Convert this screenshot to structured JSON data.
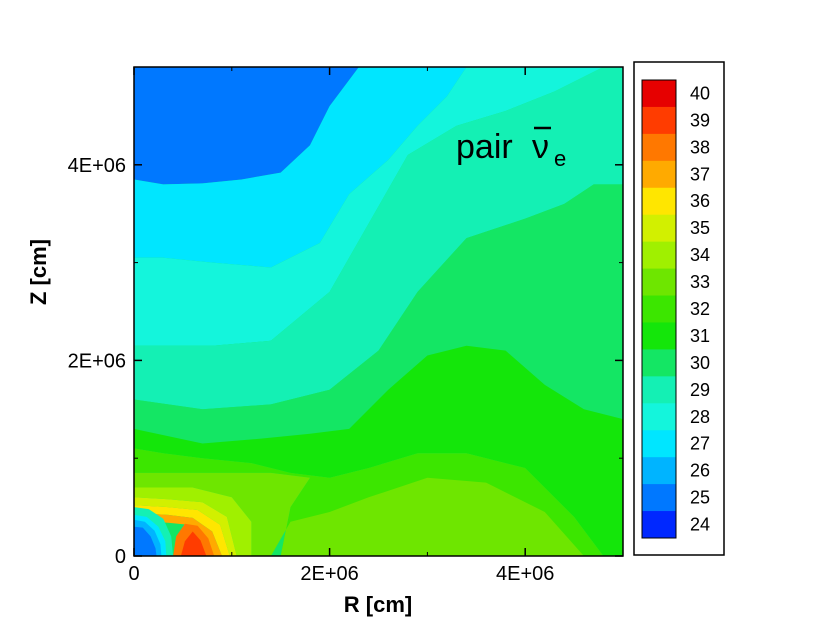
{
  "chart_data": {
    "type": "heatmap",
    "title": "",
    "annotation": {
      "text": "pair",
      "symbol": "ν",
      "subscript": "e"
    },
    "xlabel": "R [cm]",
    "ylabel": "Z [cm]",
    "xlim": [
      0,
      5000000
    ],
    "ylim": [
      0,
      5000000
    ],
    "x_ticks": [
      0,
      2000000,
      4000000
    ],
    "x_tick_labels": [
      "0",
      "2E+06",
      "4E+06"
    ],
    "y_ticks": [
      0,
      2000000,
      4000000
    ],
    "y_tick_labels": [
      "0",
      "2E+06",
      "4E+06"
    ],
    "colorbar": {
      "levels": [
        40,
        39,
        38,
        37,
        36,
        35,
        34,
        33,
        32,
        31,
        30,
        29,
        28,
        27,
        26,
        25,
        24
      ],
      "level_labels": [
        "40",
        "39",
        "38",
        "37",
        "36",
        "35",
        "34",
        "33",
        "32",
        "31",
        "30",
        "29",
        "28",
        "27",
        "26",
        "25",
        "24"
      ],
      "colors": [
        "#e60000",
        "#ff3c00",
        "#ff7800",
        "#ffaa00",
        "#ffe600",
        "#d2f000",
        "#a0f000",
        "#6ee600",
        "#3ce600",
        "#14e60a",
        "#14e664",
        "#14f0b4",
        "#14f5dc",
        "#00e6ff",
        "#00b4ff",
        "#0078ff",
        "#0028ff"
      ]
    },
    "regions": [
      {
        "level": 24.5,
        "points": [
          [
            0,
            3850000
          ],
          [
            300000,
            3800000
          ],
          [
            700000,
            3810000
          ],
          [
            1100000,
            3850000
          ],
          [
            1500000,
            3920000
          ],
          [
            1800000,
            4200000
          ],
          [
            2000000,
            4600000
          ],
          [
            2300000,
            5000000
          ],
          [
            0,
            5000000
          ]
        ]
      },
      {
        "level": 26.5,
        "points": [
          [
            0,
            3850000
          ],
          [
            300000,
            3800000
          ],
          [
            700000,
            3810000
          ],
          [
            1100000,
            3850000
          ],
          [
            1500000,
            3920000
          ],
          [
            1800000,
            4200000
          ],
          [
            2000000,
            4600000
          ],
          [
            2300000,
            5000000
          ],
          [
            3400000,
            5000000
          ],
          [
            3200000,
            4700000
          ],
          [
            2900000,
            4400000
          ],
          [
            2600000,
            4050000
          ],
          [
            2200000,
            3700000
          ],
          [
            1900000,
            3200000
          ],
          [
            1400000,
            2950000
          ],
          [
            800000,
            3000000
          ],
          [
            300000,
            3050000
          ],
          [
            0,
            3050000
          ]
        ]
      },
      {
        "level": 27.5,
        "points": [
          [
            0,
            3050000
          ],
          [
            300000,
            3050000
          ],
          [
            800000,
            3000000
          ],
          [
            1400000,
            2950000
          ],
          [
            1900000,
            3200000
          ],
          [
            2200000,
            3700000
          ],
          [
            2600000,
            4050000
          ],
          [
            2900000,
            4400000
          ],
          [
            3200000,
            4700000
          ],
          [
            3400000,
            5000000
          ],
          [
            4800000,
            5000000
          ],
          [
            4300000,
            4750000
          ],
          [
            3800000,
            4550000
          ],
          [
            3300000,
            4400000
          ],
          [
            2800000,
            4100000
          ],
          [
            2400000,
            3400000
          ],
          [
            2000000,
            2700000
          ],
          [
            1400000,
            2200000
          ],
          [
            800000,
            2150000
          ],
          [
            0,
            2150000
          ]
        ]
      },
      {
        "level": 28.5,
        "points": [
          [
            0,
            2150000
          ],
          [
            800000,
            2150000
          ],
          [
            1400000,
            2200000
          ],
          [
            2000000,
            2700000
          ],
          [
            2400000,
            3400000
          ],
          [
            2800000,
            4100000
          ],
          [
            3300000,
            4400000
          ],
          [
            3800000,
            4550000
          ],
          [
            4300000,
            4750000
          ],
          [
            4800000,
            5000000
          ],
          [
            5000000,
            5000000
          ],
          [
            5000000,
            3800000
          ],
          [
            4700000,
            3800000
          ],
          [
            4400000,
            3600000
          ],
          [
            4000000,
            3450000
          ],
          [
            3400000,
            3250000
          ],
          [
            2900000,
            2700000
          ],
          [
            2500000,
            2100000
          ],
          [
            2000000,
            1700000
          ],
          [
            1400000,
            1550000
          ],
          [
            700000,
            1500000
          ],
          [
            0,
            1600000
          ]
        ]
      },
      {
        "level": 29.5,
        "points": [
          [
            0,
            1600000
          ],
          [
            700000,
            1500000
          ],
          [
            1400000,
            1550000
          ],
          [
            2000000,
            1700000
          ],
          [
            2500000,
            2100000
          ],
          [
            2900000,
            2700000
          ],
          [
            3400000,
            3250000
          ],
          [
            4000000,
            3450000
          ],
          [
            4400000,
            3600000
          ],
          [
            4700000,
            3800000
          ],
          [
            5000000,
            3800000
          ],
          [
            5000000,
            1400000
          ],
          [
            4600000,
            1500000
          ],
          [
            4200000,
            1750000
          ],
          [
            3800000,
            2100000
          ],
          [
            3400000,
            2150000
          ],
          [
            3000000,
            2050000
          ],
          [
            2600000,
            1700000
          ],
          [
            2200000,
            1300000
          ],
          [
            1800000,
            1250000
          ],
          [
            1300000,
            1200000
          ],
          [
            700000,
            1150000
          ],
          [
            0,
            1300000
          ]
        ]
      },
      {
        "level": 30.5,
        "points": [
          [
            0,
            1300000
          ],
          [
            700000,
            1150000
          ],
          [
            1300000,
            1200000
          ],
          [
            1800000,
            1250000
          ],
          [
            2200000,
            1300000
          ],
          [
            2600000,
            1700000
          ],
          [
            3000000,
            2050000
          ],
          [
            3400000,
            2150000
          ],
          [
            3800000,
            2100000
          ],
          [
            4200000,
            1750000
          ],
          [
            4600000,
            1500000
          ],
          [
            5000000,
            1400000
          ],
          [
            5000000,
            0
          ],
          [
            4800000,
            0
          ],
          [
            4500000,
            400000
          ],
          [
            4000000,
            900000
          ],
          [
            3400000,
            1050000
          ],
          [
            2900000,
            1050000
          ],
          [
            2400000,
            900000
          ],
          [
            2000000,
            800000
          ],
          [
            1600000,
            850000
          ],
          [
            1200000,
            950000
          ],
          [
            700000,
            1000000
          ],
          [
            300000,
            1050000
          ],
          [
            0,
            1100000
          ]
        ]
      },
      {
        "level": 31.5,
        "points": [
          [
            0,
            1100000
          ],
          [
            300000,
            1050000
          ],
          [
            700000,
            1000000
          ],
          [
            1200000,
            950000
          ],
          [
            1600000,
            850000
          ],
          [
            2000000,
            800000
          ],
          [
            2400000,
            900000
          ],
          [
            2900000,
            1050000
          ],
          [
            3400000,
            1050000
          ],
          [
            4000000,
            900000
          ],
          [
            4500000,
            400000
          ],
          [
            4800000,
            0
          ],
          [
            1500000,
            0
          ],
          [
            1600000,
            500000
          ],
          [
            1800000,
            800000
          ],
          [
            1400000,
            850000
          ],
          [
            1000000,
            850000
          ],
          [
            600000,
            850000
          ],
          [
            200000,
            850000
          ],
          [
            0,
            850000
          ]
        ]
      },
      {
        "level": 32.5,
        "points": [
          [
            0,
            850000
          ],
          [
            200000,
            850000
          ],
          [
            600000,
            850000
          ],
          [
            1000000,
            850000
          ],
          [
            1400000,
            850000
          ],
          [
            1800000,
            800000
          ],
          [
            1600000,
            500000
          ],
          [
            1500000,
            0
          ],
          [
            4600000,
            0
          ],
          [
            4200000,
            450000
          ],
          [
            3600000,
            750000
          ],
          [
            3000000,
            800000
          ],
          [
            2400000,
            600000
          ],
          [
            2000000,
            450000
          ],
          [
            1600000,
            350000
          ],
          [
            1400000,
            0
          ],
          [
            1200000,
            0
          ],
          [
            1200000,
            350000
          ],
          [
            1000000,
            600000
          ],
          [
            600000,
            700000
          ],
          [
            200000,
            700000
          ],
          [
            0,
            700000
          ]
        ]
      },
      {
        "level": 33.5,
        "points": [
          [
            0,
            700000
          ],
          [
            200000,
            700000
          ],
          [
            600000,
            700000
          ],
          [
            1000000,
            600000
          ],
          [
            1200000,
            350000
          ],
          [
            1200000,
            0
          ],
          [
            1050000,
            0
          ],
          [
            950000,
            400000
          ],
          [
            700000,
            550000
          ],
          [
            350000,
            580000
          ],
          [
            0,
            600000
          ]
        ]
      },
      {
        "level": 34.5,
        "points": [
          [
            0,
            600000
          ],
          [
            350000,
            580000
          ],
          [
            700000,
            550000
          ],
          [
            950000,
            400000
          ],
          [
            1050000,
            0
          ],
          [
            980000,
            0
          ],
          [
            880000,
            320000
          ],
          [
            650000,
            470000
          ],
          [
            350000,
            500000
          ],
          [
            0,
            520000
          ]
        ]
      },
      {
        "level": 35.5,
        "points": [
          [
            0,
            520000
          ],
          [
            350000,
            500000
          ],
          [
            650000,
            470000
          ],
          [
            880000,
            320000
          ],
          [
            980000,
            0
          ],
          [
            900000,
            0
          ],
          [
            800000,
            250000
          ],
          [
            600000,
            390000
          ],
          [
            350000,
            420000
          ],
          [
            0,
            440000
          ]
        ]
      },
      {
        "level": 36.5,
        "points": [
          [
            0,
            440000
          ],
          [
            350000,
            420000
          ],
          [
            600000,
            390000
          ],
          [
            800000,
            250000
          ],
          [
            900000,
            0
          ],
          [
            820000,
            0
          ],
          [
            720000,
            180000
          ],
          [
            550000,
            320000
          ],
          [
            350000,
            340000
          ],
          [
            0,
            360000
          ]
        ]
      },
      {
        "level": 37.5,
        "points": [
          [
            400000,
            0
          ],
          [
            430000,
            200000
          ],
          [
            520000,
            330000
          ],
          [
            650000,
            310000
          ],
          [
            760000,
            180000
          ],
          [
            820000,
            0
          ]
        ]
      },
      {
        "level": 38.5,
        "points": [
          [
            480000,
            0
          ],
          [
            520000,
            150000
          ],
          [
            600000,
            250000
          ],
          [
            680000,
            160000
          ],
          [
            740000,
            0
          ]
        ]
      },
      {
        "level": 29.0,
        "points": [
          [
            0,
            0
          ],
          [
            0,
            500000
          ],
          [
            150000,
            480000
          ],
          [
            300000,
            380000
          ],
          [
            380000,
            200000
          ],
          [
            400000,
            0
          ]
        ]
      },
      {
        "level": 27.0,
        "points": [
          [
            0,
            0
          ],
          [
            0,
            420000
          ],
          [
            130000,
            400000
          ],
          [
            250000,
            300000
          ],
          [
            320000,
            150000
          ],
          [
            330000,
            0
          ]
        ]
      },
      {
        "level": 25.5,
        "points": [
          [
            0,
            0
          ],
          [
            0,
            370000
          ],
          [
            110000,
            350000
          ],
          [
            210000,
            260000
          ],
          [
            270000,
            120000
          ],
          [
            280000,
            0
          ]
        ]
      },
      {
        "level": 24.5,
        "points": [
          [
            0,
            0
          ],
          [
            0,
            300000
          ],
          [
            90000,
            290000
          ],
          [
            170000,
            200000
          ],
          [
            220000,
            80000
          ],
          [
            230000,
            0
          ]
        ]
      }
    ]
  }
}
